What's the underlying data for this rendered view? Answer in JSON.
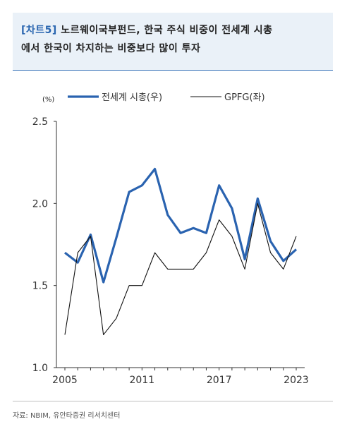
{
  "header": {
    "tag": "[차트5]",
    "line1": "노르웨이국부펀드, 한국 주식 비중이 전세계 시총",
    "line2": "에서 한국이 차지하는 비중보다 많이 투자"
  },
  "source": "자료: NBIM, 유안타증권 리서치센터",
  "chart_data": {
    "type": "line",
    "unit_label": "(%)",
    "x": [
      2005,
      2006,
      2007,
      2008,
      2009,
      2010,
      2011,
      2012,
      2013,
      2014,
      2015,
      2016,
      2017,
      2018,
      2019,
      2020,
      2021,
      2022,
      2023
    ],
    "xticks": [
      "2005",
      "2011",
      "2017",
      "2023"
    ],
    "yticks": [
      "1.0",
      "1.5",
      "2.0",
      "2.5"
    ],
    "ylim": [
      1.0,
      2.5
    ],
    "legend_position": "top",
    "series": [
      {
        "name": "전세계 시총(우)",
        "color": "#2a63b0",
        "values": [
          1.7,
          1.64,
          1.81,
          1.52,
          1.79,
          2.07,
          2.11,
          2.21,
          1.93,
          1.82,
          1.85,
          1.82,
          2.11,
          1.97,
          1.66,
          2.03,
          1.77,
          1.65,
          1.72
        ]
      },
      {
        "name": "GPFG(좌)",
        "color": "#111111",
        "values": [
          1.2,
          1.7,
          1.8,
          1.2,
          1.3,
          1.5,
          1.5,
          1.7,
          1.6,
          1.6,
          1.6,
          1.7,
          1.9,
          1.8,
          1.6,
          2.0,
          1.7,
          1.6,
          1.8
        ]
      }
    ]
  }
}
